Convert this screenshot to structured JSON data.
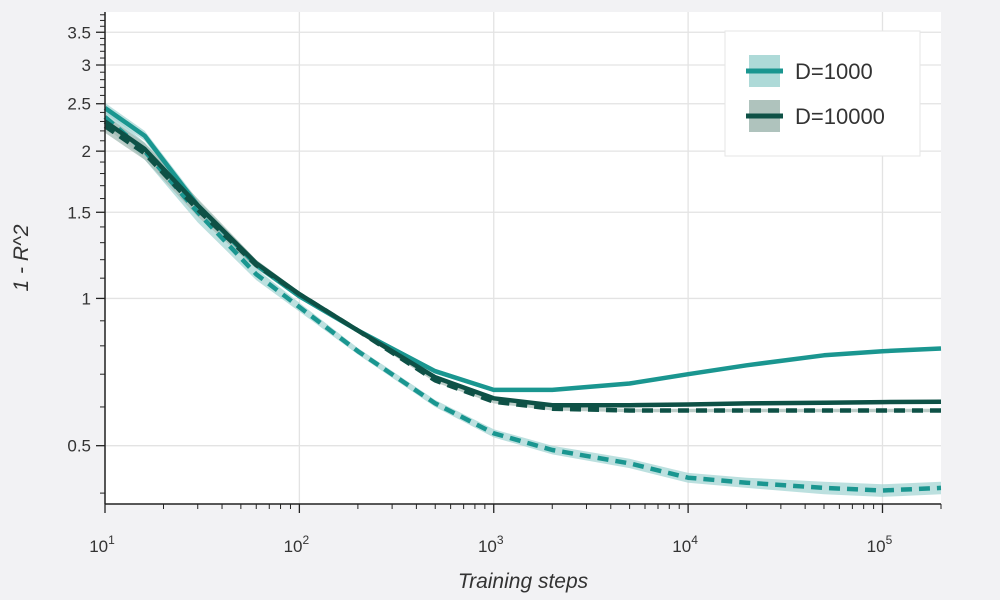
{
  "chart_data": {
    "type": "line",
    "xlabel": "Training steps",
    "ylabel": "1 - R^2",
    "x_scale": "log",
    "y_scale": "log",
    "xlim": [
      10,
      200000
    ],
    "ylim": [
      0.38,
      3.85
    ],
    "grid": true,
    "legend_position": "top-right",
    "x_ticks": [
      {
        "value": 10,
        "base": "10",
        "exp": "1"
      },
      {
        "value": 100,
        "base": "10",
        "exp": "2"
      },
      {
        "value": 1000,
        "base": "10",
        "exp": "3"
      },
      {
        "value": 10000,
        "base": "10",
        "exp": "4"
      },
      {
        "value": 100000,
        "base": "10",
        "exp": "5"
      }
    ],
    "y_ticks": [
      {
        "value": 0.5,
        "label": "0.5"
      },
      {
        "value": 1,
        "label": "1"
      },
      {
        "value": 1.5,
        "label": "1.5"
      },
      {
        "value": 2,
        "label": "2"
      },
      {
        "value": 2.5,
        "label": "2.5"
      },
      {
        "value": 3,
        "label": "3"
      },
      {
        "value": 3.5,
        "label": "3.5"
      }
    ],
    "legend": [
      {
        "label": "D=1000",
        "color": "#1a9690",
        "band_color": "#a5d6d4"
      },
      {
        "label": "D=10000",
        "color": "#0e5146",
        "band_color": "#a6bcb6"
      }
    ],
    "series": [
      {
        "legend": "D=1000",
        "style": "solid",
        "color": "#1a9690",
        "band_color": "#a5d6d4",
        "x": [
          10,
          16,
          30,
          60,
          100,
          200,
          500,
          1000,
          2000,
          5000,
          10000,
          20000,
          50000,
          100000,
          200000
        ],
        "y": [
          2.45,
          2.15,
          1.55,
          1.17,
          1.01,
          0.86,
          0.71,
          0.65,
          0.65,
          0.67,
          0.7,
          0.73,
          0.765,
          0.78,
          0.79
        ],
        "band": [
          0.06,
          0.05,
          0.04,
          0.02,
          0.012,
          0.01,
          0.008,
          0.006,
          0.006,
          0.005,
          0.005,
          0.005,
          0.005,
          0.005,
          0.005
        ]
      },
      {
        "legend": "D=1000",
        "style": "dashed",
        "color": "#1a9690",
        "band_color": "#a5d6d4",
        "x": [
          10,
          16,
          30,
          60,
          100,
          200,
          500,
          1000,
          2000,
          5000,
          10000,
          20000,
          50000,
          100000,
          200000
        ],
        "y": [
          2.35,
          2.0,
          1.5,
          1.12,
          0.96,
          0.78,
          0.61,
          0.53,
          0.49,
          0.46,
          0.43,
          0.42,
          0.41,
          0.405,
          0.41
        ],
        "band": [
          0.1,
          0.08,
          0.07,
          0.03,
          0.02,
          0.012,
          0.01,
          0.01,
          0.01,
          0.01,
          0.01,
          0.01,
          0.012,
          0.012,
          0.012
        ]
      },
      {
        "legend": "D=10000",
        "style": "solid",
        "color": "#0e5146",
        "band_color": "#a6bcb6",
        "x": [
          10,
          16,
          30,
          60,
          100,
          200,
          500,
          1000,
          2000,
          5000,
          10000,
          20000,
          50000,
          100000,
          200000
        ],
        "y": [
          2.3,
          2.02,
          1.55,
          1.18,
          1.02,
          0.86,
          0.69,
          0.625,
          0.605,
          0.605,
          0.607,
          0.61,
          0.612,
          0.614,
          0.615
        ],
        "band": [
          0.07,
          0.06,
          0.05,
          0.02,
          0.012,
          0.008,
          0.006,
          0.005,
          0.005,
          0.005,
          0.005,
          0.005,
          0.005,
          0.005,
          0.005
        ]
      },
      {
        "legend": "D=10000",
        "style": "dashed",
        "color": "#0e5146",
        "band_color": "#a6bcb6",
        "x": [
          10,
          16,
          30,
          60,
          100,
          200,
          500,
          1000,
          2000,
          5000,
          10000,
          20000,
          50000,
          100000,
          200000
        ],
        "y": [
          2.25,
          1.98,
          1.52,
          1.17,
          1.02,
          0.86,
          0.68,
          0.615,
          0.595,
          0.59,
          0.59,
          0.59,
          0.59,
          0.59,
          0.59
        ],
        "band": [
          0.07,
          0.06,
          0.05,
          0.02,
          0.012,
          0.008,
          0.006,
          0.005,
          0.005,
          0.005,
          0.005,
          0.005,
          0.005,
          0.005,
          0.005
        ]
      }
    ]
  }
}
